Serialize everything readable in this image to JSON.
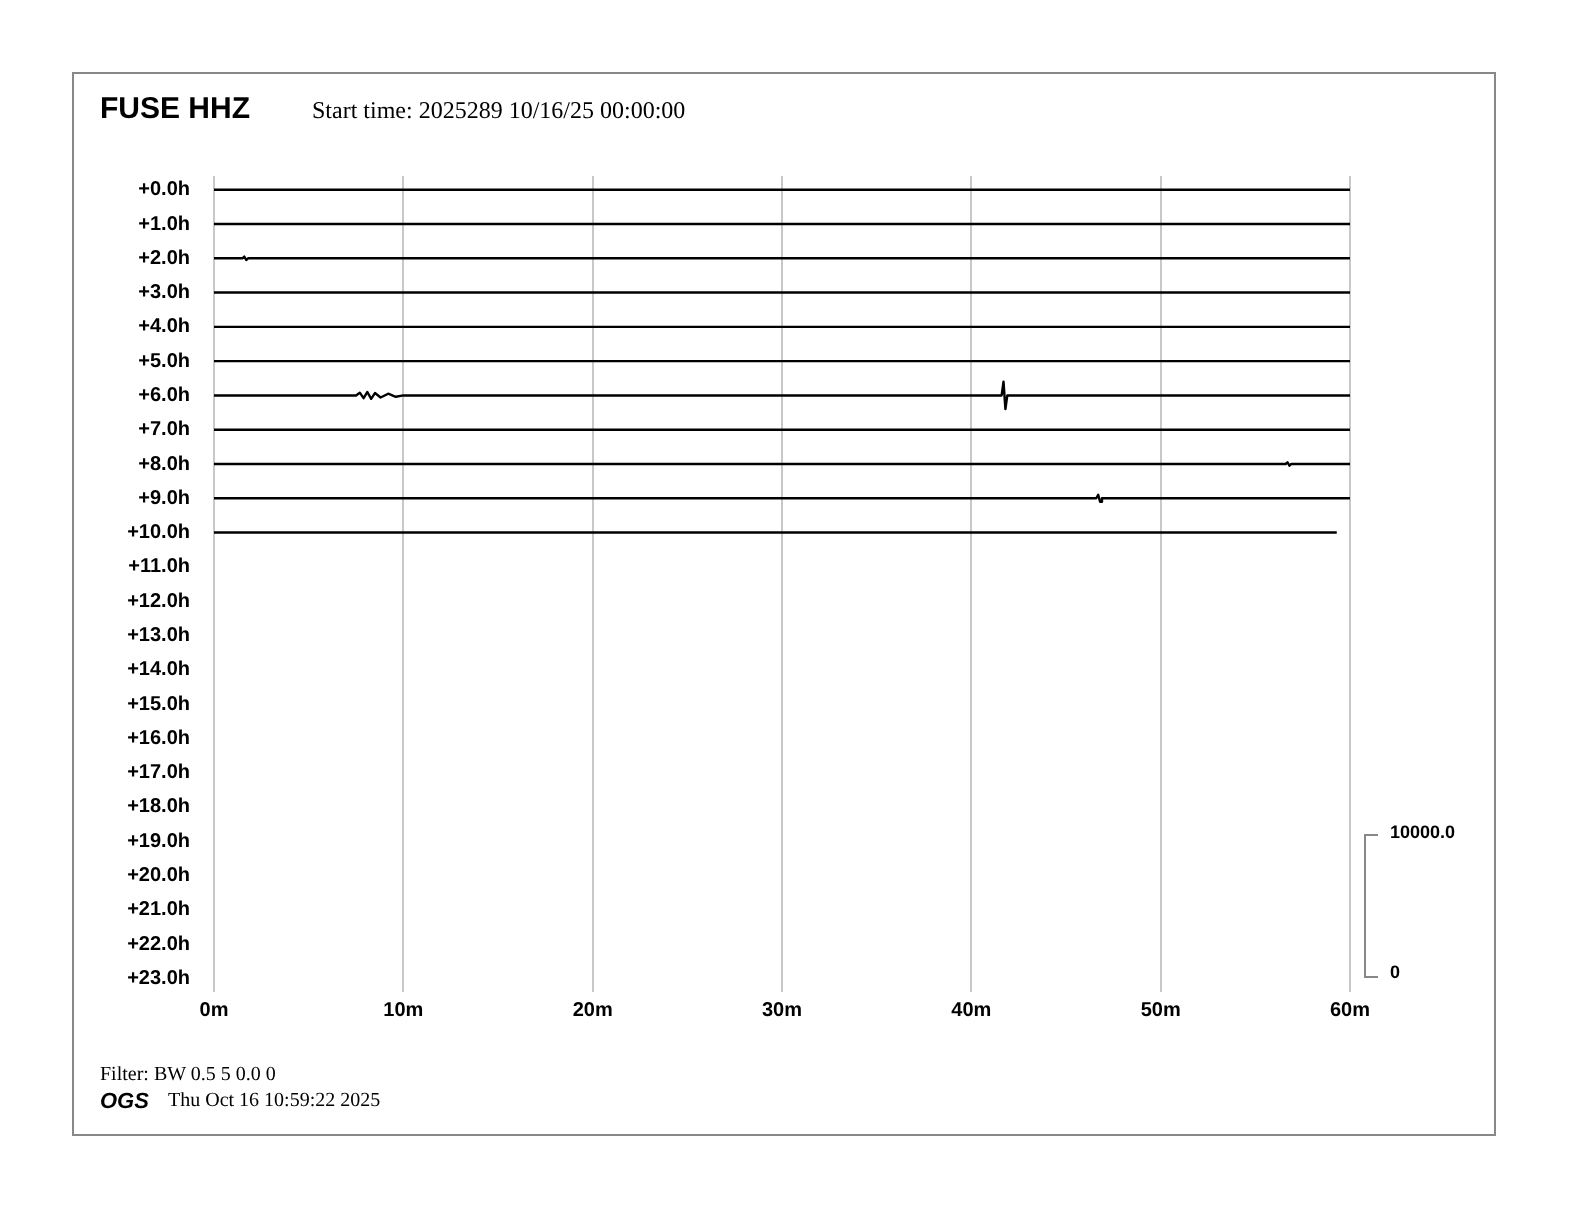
{
  "chart_data": {
    "type": "line",
    "title": "FUSE HHZ",
    "subtitle": "Start time: 2025289 10/16/25 00:00:00",
    "annotations": [
      "Filter: BW 0.5 5 0.0 0",
      "OGS",
      "Thu Oct 16 10:59:22 2025",
      "10000.0",
      "0"
    ],
    "xlim": [
      0,
      60
    ],
    "xticks": [
      {
        "value": 0,
        "label": "0m"
      },
      {
        "value": 10,
        "label": "10m"
      },
      {
        "value": 20,
        "label": "20m"
      },
      {
        "value": 30,
        "label": "30m"
      },
      {
        "value": 40,
        "label": "40m"
      },
      {
        "value": 50,
        "label": "50m"
      },
      {
        "value": 60,
        "label": "60m"
      }
    ],
    "ylim": [
      23.4,
      -0.4
    ],
    "yticks": [
      {
        "value": 0,
        "label": "+0.0h"
      },
      {
        "value": 1,
        "label": "+1.0h"
      },
      {
        "value": 2,
        "label": "+2.0h"
      },
      {
        "value": 3,
        "label": "+3.0h"
      },
      {
        "value": 4,
        "label": "+4.0h"
      },
      {
        "value": 5,
        "label": "+5.0h"
      },
      {
        "value": 6,
        "label": "+6.0h"
      },
      {
        "value": 7,
        "label": "+7.0h"
      },
      {
        "value": 8,
        "label": "+8.0h"
      },
      {
        "value": 9,
        "label": "+9.0h"
      },
      {
        "value": 10,
        "label": "+10.0h"
      },
      {
        "value": 11,
        "label": "+11.0h"
      },
      {
        "value": 12,
        "label": "+12.0h"
      },
      {
        "value": 13,
        "label": "+13.0h"
      },
      {
        "value": 14,
        "label": "+14.0h"
      },
      {
        "value": 15,
        "label": "+15.0h"
      },
      {
        "value": 16,
        "label": "+16.0h"
      },
      {
        "value": 17,
        "label": "+17.0h"
      },
      {
        "value": 18,
        "label": "+18.0h"
      },
      {
        "value": 19,
        "label": "+19.0h"
      },
      {
        "value": 20,
        "label": "+20.0h"
      },
      {
        "value": 21,
        "label": "+21.0h"
      },
      {
        "value": 22,
        "label": "+22.0h"
      },
      {
        "value": 23,
        "label": "+23.0h"
      }
    ],
    "grid": "x",
    "legend": false,
    "marker": "none",
    "line_style": "solid",
    "series": [
      {
        "color": "#000000",
        "x": [
          0,
          15,
          30,
          45,
          60
        ],
        "values": [
          0,
          0,
          0,
          0,
          0
        ]
      },
      {
        "color": "#000000",
        "x": [
          0,
          15,
          30,
          45,
          60
        ],
        "values": [
          1,
          1,
          1,
          1,
          1
        ]
      },
      {
        "color": "#000000",
        "x": [
          0,
          1.5,
          1.6,
          1.7,
          1.8,
          15,
          30,
          45,
          60
        ],
        "values": [
          2,
          2,
          1.95,
          2.05,
          2,
          2,
          2,
          2,
          2
        ]
      },
      {
        "color": "#000000",
        "x": [
          0,
          15,
          30,
          45,
          60
        ],
        "values": [
          3,
          3,
          3,
          3,
          3
        ]
      },
      {
        "color": "#000000",
        "x": [
          0,
          15,
          30,
          45,
          60
        ],
        "values": [
          4,
          4,
          4,
          4,
          4
        ]
      },
      {
        "color": "#000000",
        "x": [
          0,
          15,
          30,
          45,
          60
        ],
        "values": [
          5,
          5,
          5,
          5,
          5
        ]
      },
      {
        "color": "#000000",
        "x": [
          0,
          7.5,
          7.7,
          7.9,
          8.1,
          8.3,
          8.5,
          8.8,
          9.2,
          9.6,
          10,
          41.6,
          41.7,
          41.8,
          41.9,
          60
        ],
        "values": [
          6,
          6,
          5.92,
          6.08,
          5.9,
          6.1,
          5.93,
          6.06,
          5.95,
          6.04,
          6,
          6,
          5.6,
          6.4,
          6,
          6
        ]
      },
      {
        "color": "#000000",
        "x": [
          0,
          15,
          30,
          45,
          60
        ],
        "values": [
          7,
          7,
          7,
          7,
          7
        ]
      },
      {
        "color": "#000000",
        "x": [
          0,
          15,
          30,
          45,
          56.6,
          56.7,
          56.8,
          56.9,
          60
        ],
        "values": [
          8,
          8,
          8,
          8,
          8,
          7.95,
          8.05,
          8,
          8
        ]
      },
      {
        "color": "#000000",
        "x": [
          0,
          15,
          30,
          45,
          46.6,
          46.7,
          46.8,
          46.9,
          60
        ],
        "values": [
          9,
          9,
          9,
          9,
          9,
          8.9,
          9.1,
          9,
          9
        ]
      },
      {
        "color": "#000000",
        "x": [
          0,
          15,
          30,
          45,
          59.3
        ],
        "values": [
          10,
          10,
          10,
          10,
          10
        ]
      }
    ]
  }
}
